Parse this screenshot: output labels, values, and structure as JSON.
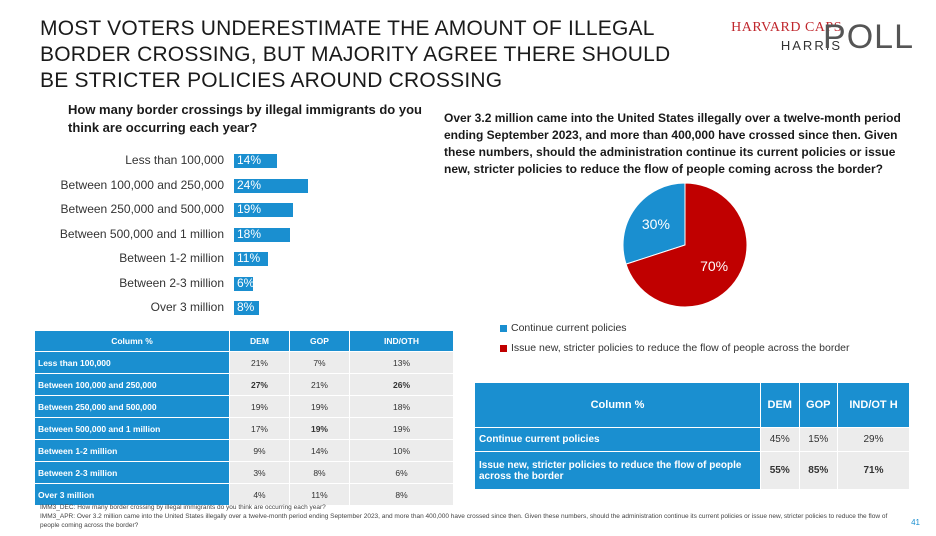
{
  "title": "MOST VOTERS UNDERESTIMATE THE AMOUNT OF ILLEGAL BORDER CROSSING, BUT MAJORITY AGREE THERE SHOULD BE STRICTER POLICIES AROUND CROSSING",
  "logo": {
    "line1": "HARVARD CAPS",
    "line2": "HARRIS",
    "line3": "POLL"
  },
  "colors": {
    "blue": "#1a8fd0",
    "red": "#c00000",
    "table_gray": "#ececec"
  },
  "chart_data": [
    {
      "type": "bar",
      "title": "How many border crossings by illegal immigrants do you think are occurring each year?",
      "categories": [
        "Less than 100,000",
        "Between 100,000 and 250,000",
        "Between 250,000 and 500,000",
        "Between 500,000 and 1 million",
        "Between 1-2 million",
        "Between 2-3 million",
        "Over 3 million"
      ],
      "values": [
        14,
        24,
        19,
        18,
        11,
        6,
        8
      ],
      "value_labels": [
        "14%",
        "24%",
        "19%",
        "18%",
        "11%",
        "6%",
        "8%"
      ],
      "orientation": "horizontal"
    },
    {
      "type": "pie",
      "title": "Over 3.2 million came into the United States illegally over a twelve-month period ending September 2023, and more than 400,000 have crossed since then. Given these numbers, should the administration continue its current policies or issue new, stricter policies to reduce the flow of people coming across the border?",
      "categories": [
        "Continue current policies",
        "Issue new, stricter policies to reduce the flow of people across the border"
      ],
      "values": [
        30,
        70
      ],
      "value_labels": [
        "30%",
        "70%"
      ],
      "colors": [
        "#1a8fd0",
        "#c00000"
      ],
      "legend": "bottom"
    },
    {
      "type": "table",
      "headers": [
        "Column %",
        "DEM",
        "GOP",
        "IND/OTH"
      ],
      "rows": [
        {
          "label": "Less than 100,000",
          "values": [
            "21%",
            "7%",
            "13%"
          ],
          "bold": []
        },
        {
          "label": "Between 100,000 and 250,000",
          "values": [
            "27%",
            "21%",
            "26%"
          ],
          "bold": [
            0,
            2
          ]
        },
        {
          "label": "Between 250,000 and 500,000",
          "values": [
            "19%",
            "19%",
            "18%"
          ],
          "bold": []
        },
        {
          "label": "Between 500,000 and 1 million",
          "values": [
            "17%",
            "19%",
            "19%"
          ],
          "bold": [
            1
          ]
        },
        {
          "label": "Between 1-2 million",
          "values": [
            "9%",
            "14%",
            "10%"
          ],
          "bold": []
        },
        {
          "label": "Between 2-3 million",
          "values": [
            "3%",
            "8%",
            "6%"
          ],
          "bold": []
        },
        {
          "label": "Over 3 million",
          "values": [
            "4%",
            "11%",
            "8%"
          ],
          "bold": []
        }
      ]
    },
    {
      "type": "table",
      "headers": [
        "Column %",
        "DEM",
        "GOP",
        "IND/OT H"
      ],
      "rows": [
        {
          "label": "Continue current policies",
          "values": [
            "45%",
            "15%",
            "29%"
          ],
          "bold": []
        },
        {
          "label": "Issue new, stricter policies to reduce the flow of people across the border",
          "values": [
            "55%",
            "85%",
            "71%"
          ],
          "bold": [
            0,
            1,
            2
          ]
        }
      ]
    }
  ],
  "footnotes": [
    "IMM3_DEC: How many border crossing by illegal immigrants do you think are occurring each year?",
    "IMM3_APR: Over 3.2 million came into the United States illegally over a twelve-month period ending September 2023, and more than 400,000 have crossed since then. Given these numbers, should the administration continue its current policies or issue new, stricter policies to reduce the flow of people coming across the border?"
  ],
  "page_number": "41"
}
